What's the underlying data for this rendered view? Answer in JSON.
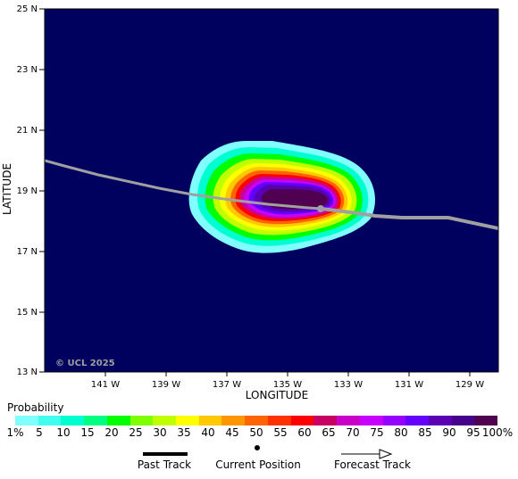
{
  "map": {
    "y_axis_title": "LATITUDE",
    "x_axis_title": "LONGITUDE",
    "lat_ticks": [
      "25 N",
      "23 N",
      "21 N",
      "19 N",
      "17 N",
      "15 N",
      "13 N"
    ],
    "lon_ticks": [
      "141 W",
      "139 W",
      "137 W",
      "135 W",
      "133 W",
      "131 W",
      "129 W"
    ],
    "watermark": "© UCL 2025",
    "background_color": "#00005f"
  },
  "legend": {
    "title": "Probability",
    "colors": [
      "#80ffff",
      "#40ffef",
      "#00ffd0",
      "#00ff80",
      "#00ff00",
      "#80ff00",
      "#c0ff00",
      "#ffff00",
      "#ffc800",
      "#ff9600",
      "#ff6400",
      "#ff3200",
      "#ff0000",
      "#c80064",
      "#c800c8",
      "#c800ff",
      "#9600ff",
      "#6400ff",
      "#5a00b4",
      "#46008c",
      "#500050"
    ],
    "ticks": [
      "1%",
      "5",
      "10",
      "15",
      "20",
      "25",
      "30",
      "35",
      "40",
      "45",
      "50",
      "55",
      "60",
      "65",
      "70",
      "75",
      "80",
      "85",
      "90",
      "95",
      "100%"
    ]
  },
  "key": {
    "past_track": "Past Track",
    "current_position": "Current Position",
    "forecast_track": "Forecast Track"
  }
}
